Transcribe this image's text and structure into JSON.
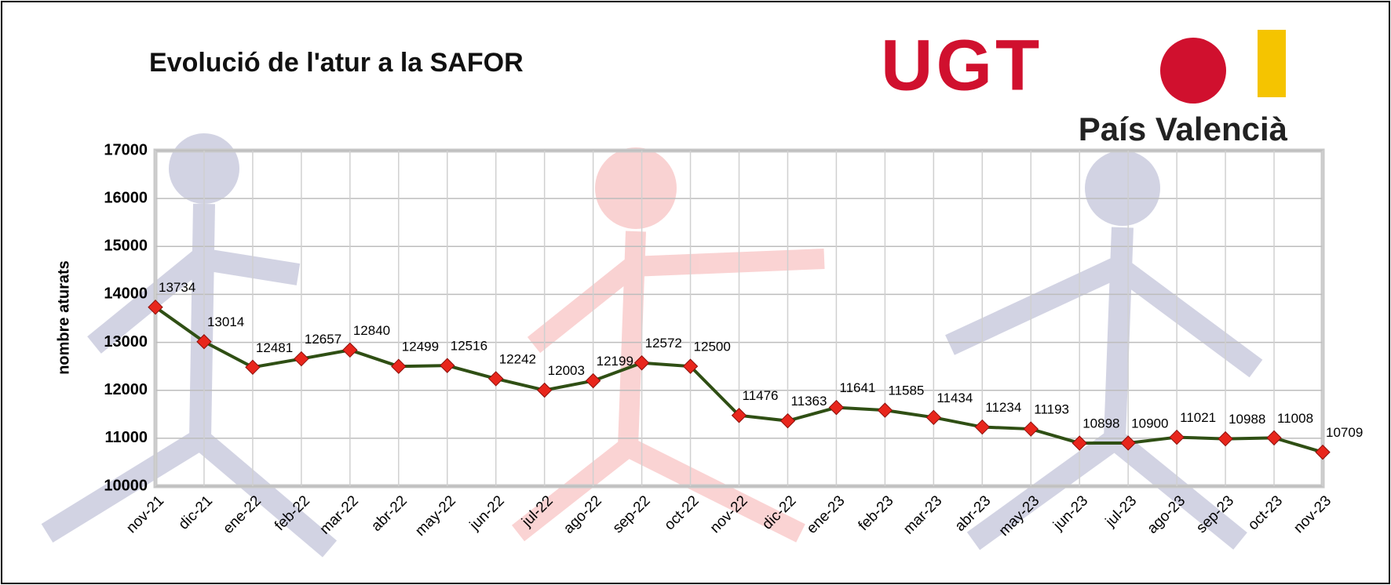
{
  "chart_data": {
    "type": "line",
    "title": "Evolució de l'atur a la SAFOR",
    "y_label": "nombre aturats",
    "categories": [
      "nov-21",
      "dic-21",
      "ene-22",
      "feb-22",
      "mar-22",
      "abr-22",
      "may-22",
      "jun-22",
      "jul-22",
      "ago-22",
      "sep-22",
      "oct-22",
      "nov-22",
      "dic-22",
      "ene-23",
      "feb-23",
      "mar-23",
      "abr-23",
      "may-23",
      "jun-23",
      "jul-23",
      "ago-23",
      "sep-23",
      "oct-23",
      "nov-23"
    ],
    "series": [
      {
        "name": "nombre aturats",
        "color": "#2f4f14",
        "marker_color": "#e8261c",
        "values": [
          13734,
          13014,
          12481,
          12657,
          12840,
          12499,
          12516,
          12242,
          12003,
          12199,
          12572,
          12500,
          11476,
          11363,
          11641,
          11585,
          11434,
          11234,
          11193,
          10898,
          10900,
          11021,
          10988,
          11008,
          10709
        ]
      }
    ],
    "ylim": [
      10000,
      17000
    ],
    "yticks": [
      10000,
      11000,
      12000,
      13000,
      14000,
      15000,
      16000,
      17000
    ],
    "grid": true
  },
  "logo": {
    "name": "UGT",
    "region": "País Valencià"
  }
}
